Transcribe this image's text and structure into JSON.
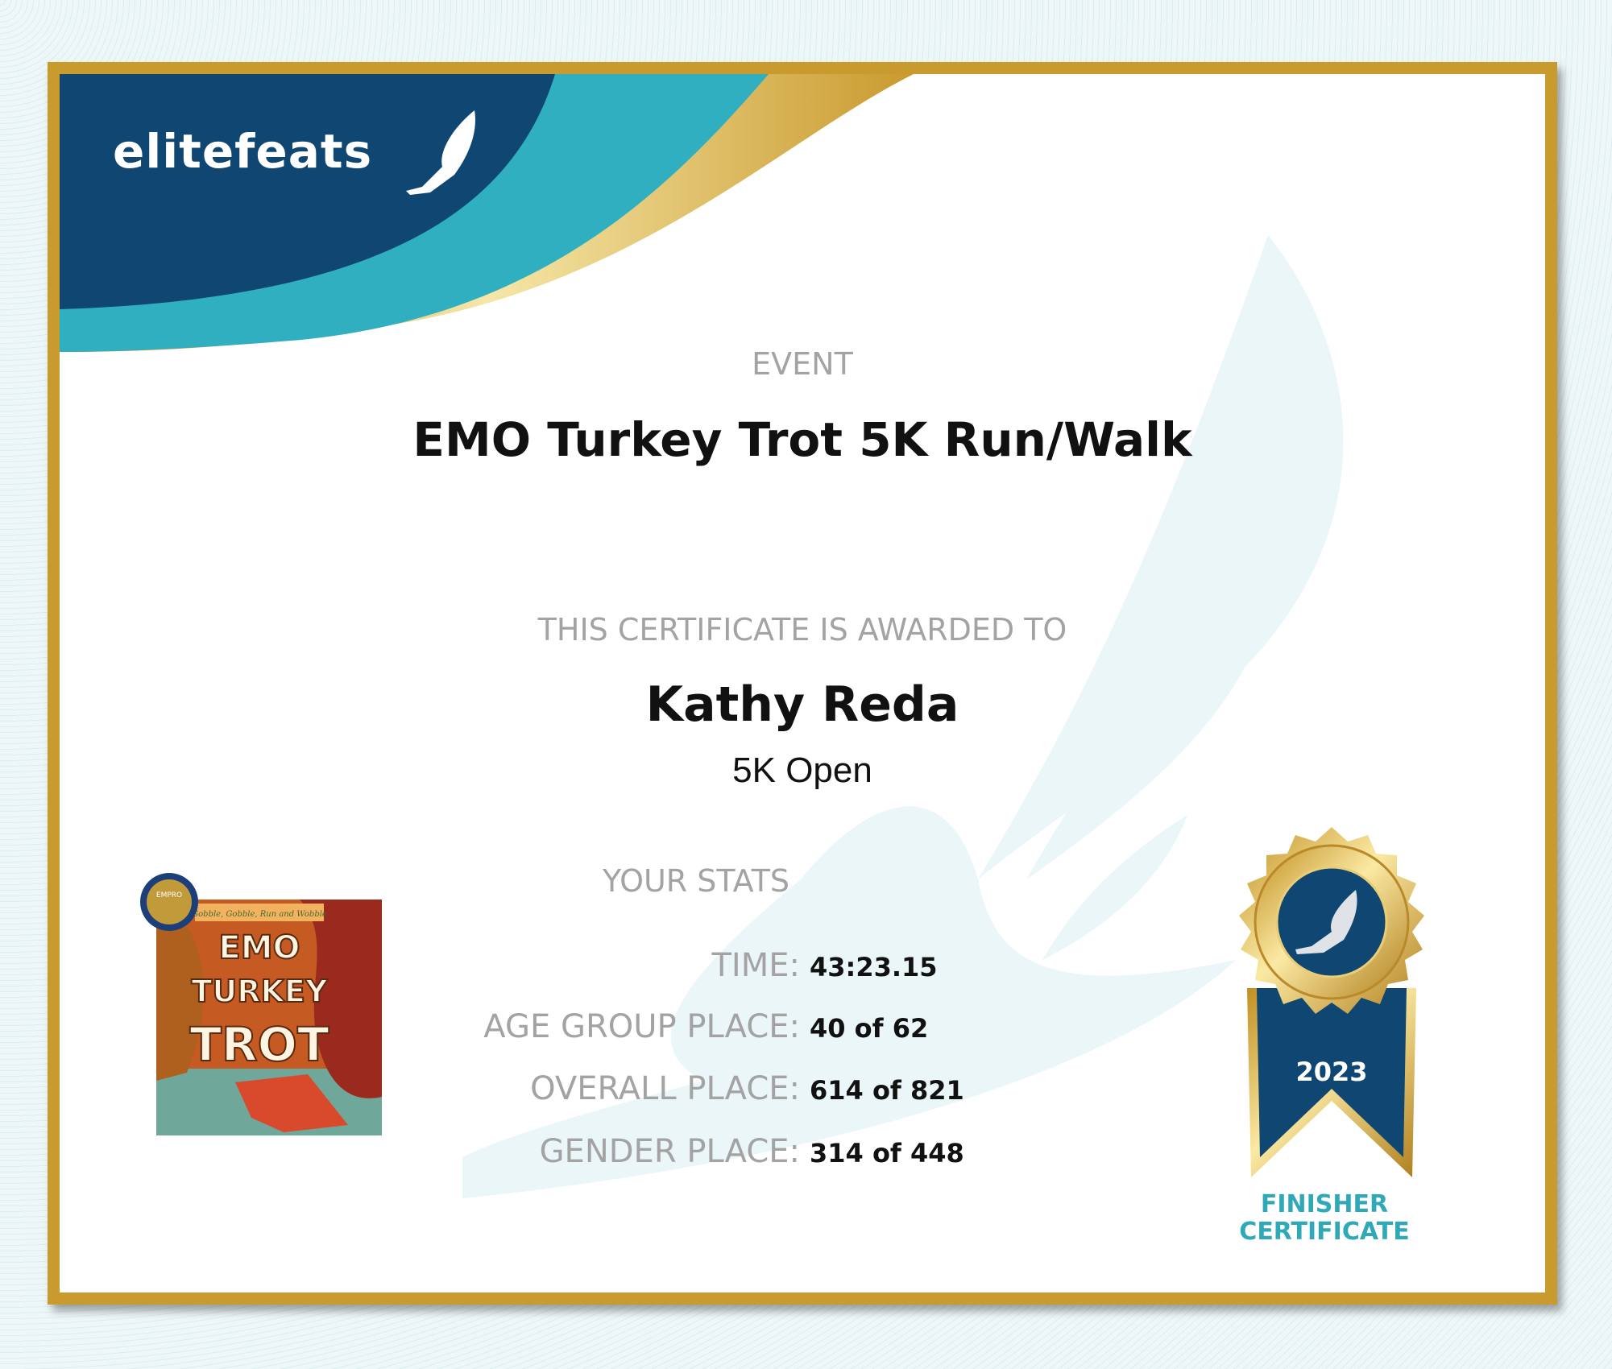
{
  "brand": {
    "logo_text": "elitefeats",
    "colors": {
      "navy": "#0f4672",
      "teal": "#30afc0",
      "gold": "#c99a2e"
    }
  },
  "event": {
    "label": "EVENT",
    "name": "EMO Turkey Trot 5K Run/Walk"
  },
  "award": {
    "label": "THIS CERTIFICATE IS AWARDED TO",
    "name": "Kathy Reda",
    "division": "5K Open"
  },
  "stats": {
    "label": "YOUR STATS",
    "rows": [
      {
        "label": "TIME:",
        "value": "43:23.15"
      },
      {
        "label": "AGE GROUP PLACE:",
        "value": "40 of 62"
      },
      {
        "label": "OVERALL PLACE:",
        "value": "614 of 821"
      },
      {
        "label": "GENDER PLACE:",
        "value": "314 of 448"
      }
    ]
  },
  "race_logo": {
    "tagline": "Gobble, Gobble, Run and Wobble",
    "line1": "EMO",
    "line2": "TURKEY",
    "line3": "TROT",
    "seal": "EMPRO"
  },
  "medal": {
    "year": "2023",
    "caption_line1": "FINISHER",
    "caption_line2": "CERTIFICATE",
    "icon": "winged-foot-icon"
  }
}
